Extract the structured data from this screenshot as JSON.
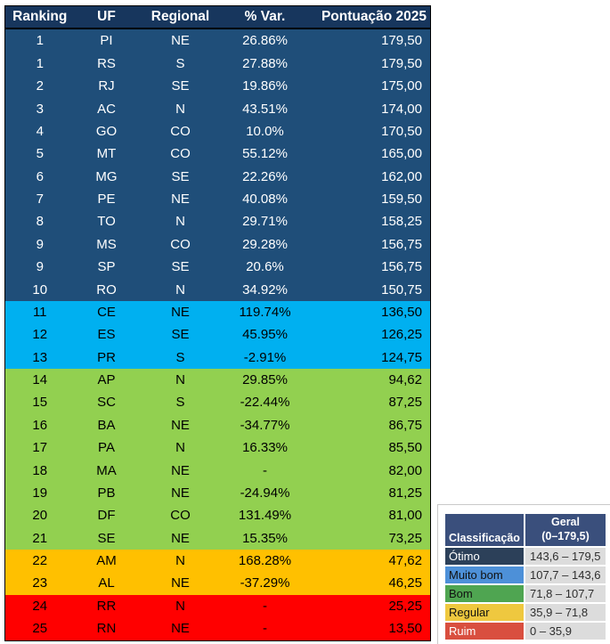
{
  "chart_data": {
    "type": "table",
    "columns": [
      "Ranking",
      "UF",
      "Regional",
      "% Var.",
      "Pontuação 2025"
    ],
    "header_bg": "#17365D",
    "header_text": "#FFFFFF",
    "tier_colors": {
      "otimo": {
        "bg": "#1F4E79",
        "text": "#FFFFFF"
      },
      "muito_bom": {
        "bg": "#00B0F0",
        "text": "#000000"
      },
      "bom": {
        "bg": "#92D050",
        "text": "#000000"
      },
      "regular": {
        "bg": "#FFC000",
        "text": "#000000"
      },
      "ruim": {
        "bg": "#FF0000",
        "text": "#000000"
      }
    },
    "rows": [
      {
        "ranking": "1",
        "uf": "PI",
        "regional": "NE",
        "var": "26.86%",
        "pontuacao": "179,50",
        "tier": "otimo"
      },
      {
        "ranking": "1",
        "uf": "RS",
        "regional": "S",
        "var": "27.88%",
        "pontuacao": "179,50",
        "tier": "otimo"
      },
      {
        "ranking": "2",
        "uf": "RJ",
        "regional": "SE",
        "var": "19.86%",
        "pontuacao": "175,00",
        "tier": "otimo"
      },
      {
        "ranking": "3",
        "uf": "AC",
        "regional": "N",
        "var": "43.51%",
        "pontuacao": "174,00",
        "tier": "otimo"
      },
      {
        "ranking": "4",
        "uf": "GO",
        "regional": "CO",
        "var": "10.0%",
        "pontuacao": "170,50",
        "tier": "otimo"
      },
      {
        "ranking": "5",
        "uf": "MT",
        "regional": "CO",
        "var": "55.12%",
        "pontuacao": "165,00",
        "tier": "otimo"
      },
      {
        "ranking": "6",
        "uf": "MG",
        "regional": "SE",
        "var": "22.26%",
        "pontuacao": "162,00",
        "tier": "otimo"
      },
      {
        "ranking": "7",
        "uf": "PE",
        "regional": "NE",
        "var": "40.08%",
        "pontuacao": "159,50",
        "tier": "otimo"
      },
      {
        "ranking": "8",
        "uf": "TO",
        "regional": "N",
        "var": "29.71%",
        "pontuacao": "158,25",
        "tier": "otimo"
      },
      {
        "ranking": "9",
        "uf": "MS",
        "regional": "CO",
        "var": "29.28%",
        "pontuacao": "156,75",
        "tier": "otimo"
      },
      {
        "ranking": "9",
        "uf": "SP",
        "regional": "SE",
        "var": "20.6%",
        "pontuacao": "156,75",
        "tier": "otimo"
      },
      {
        "ranking": "10",
        "uf": "RO",
        "regional": "N",
        "var": "34.92%",
        "pontuacao": "150,75",
        "tier": "otimo"
      },
      {
        "ranking": "11",
        "uf": "CE",
        "regional": "NE",
        "var": "119.74%",
        "pontuacao": "136,50",
        "tier": "muito_bom"
      },
      {
        "ranking": "12",
        "uf": "ES",
        "regional": "SE",
        "var": "45.95%",
        "pontuacao": "126,25",
        "tier": "muito_bom"
      },
      {
        "ranking": "13",
        "uf": "PR",
        "regional": "S",
        "var": "-2.91%",
        "pontuacao": "124,75",
        "tier": "muito_bom"
      },
      {
        "ranking": "14",
        "uf": "AP",
        "regional": "N",
        "var": "29.85%",
        "pontuacao": "94,62",
        "tier": "bom"
      },
      {
        "ranking": "15",
        "uf": "SC",
        "regional": "S",
        "var": "-22.44%",
        "pontuacao": "87,25",
        "tier": "bom"
      },
      {
        "ranking": "16",
        "uf": "BA",
        "regional": "NE",
        "var": "-34.77%",
        "pontuacao": "86,75",
        "tier": "bom"
      },
      {
        "ranking": "17",
        "uf": "PA",
        "regional": "N",
        "var": "16.33%",
        "pontuacao": "85,50",
        "tier": "bom"
      },
      {
        "ranking": "18",
        "uf": "MA",
        "regional": "NE",
        "var": "-",
        "pontuacao": "82,00",
        "tier": "bom"
      },
      {
        "ranking": "19",
        "uf": "PB",
        "regional": "NE",
        "var": "-24.94%",
        "pontuacao": "81,25",
        "tier": "bom"
      },
      {
        "ranking": "20",
        "uf": "DF",
        "regional": "CO",
        "var": "131.49%",
        "pontuacao": "81,00",
        "tier": "bom"
      },
      {
        "ranking": "21",
        "uf": "SE",
        "regional": "NE",
        "var": "15.35%",
        "pontuacao": "73,25",
        "tier": "bom"
      },
      {
        "ranking": "22",
        "uf": "AM",
        "regional": "N",
        "var": "168.28%",
        "pontuacao": "47,62",
        "tier": "regular"
      },
      {
        "ranking": "23",
        "uf": "AL",
        "regional": "NE",
        "var": "-37.29%",
        "pontuacao": "46,25",
        "tier": "regular"
      },
      {
        "ranking": "24",
        "uf": "RR",
        "regional": "N",
        "var": "-",
        "pontuacao": "25,25",
        "tier": "ruim"
      },
      {
        "ranking": "25",
        "uf": "RN",
        "regional": "NE",
        "var": "-",
        "pontuacao": "13,50",
        "tier": "ruim"
      }
    ],
    "legend": {
      "header_label": "Classificação",
      "header_value_line1": "Geral",
      "header_value_line2": "(0–179,5)",
      "header_bg": "#3A4F7C",
      "value_bg": "#DCDCDC",
      "rows": [
        {
          "label": "Ótimo",
          "range": "143,6 – 179,5",
          "bg": "#2C4059",
          "text": "#FFFFFF"
        },
        {
          "label": "Muito bom",
          "range": "107,7 – 143,6",
          "bg": "#4D90D8",
          "text": "#111111"
        },
        {
          "label": "Bom",
          "range": "71,8 – 107,7",
          "bg": "#4FA551",
          "text": "#111111"
        },
        {
          "label": "Regular",
          "range": "35,9 – 71,8",
          "bg": "#EFC83F",
          "text": "#111111"
        },
        {
          "label": "Ruim",
          "range": "0 – 35,9",
          "bg": "#D94F3F",
          "text": "#FFFFFF"
        }
      ]
    }
  }
}
